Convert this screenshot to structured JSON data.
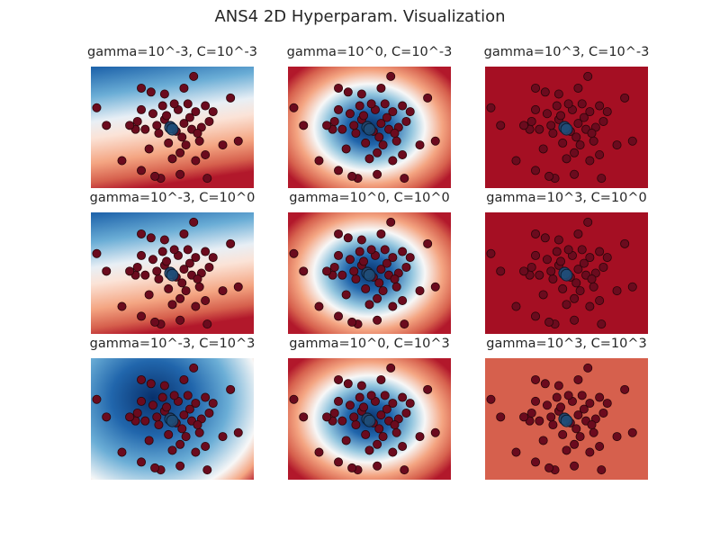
{
  "chart_data": {
    "type": "heatmap",
    "title": "ANS4 2D Hyperparam. Visualization",
    "colormap": "RdBu",
    "colors": {
      "point_fill": "#6b0b1e",
      "point_edge": "#2a0509",
      "support_fill": "#1f4e79",
      "text": "#262626"
    },
    "points": [
      [
        -0.05,
        0.05
      ],
      [
        0.1,
        -0.1
      ],
      [
        -0.2,
        0.2
      ],
      [
        0.3,
        0.1
      ],
      [
        0.25,
        -0.25
      ],
      [
        -0.35,
        -0.15
      ],
      [
        0.45,
        0.25
      ],
      [
        0.5,
        -0.05
      ],
      [
        -0.5,
        0.35
      ],
      [
        0.15,
        0.45
      ],
      [
        -0.1,
        -0.4
      ],
      [
        0.35,
        -0.45
      ],
      [
        0.6,
        0.4
      ],
      [
        -0.7,
        -0.05
      ],
      [
        0.75,
        0.0
      ],
      [
        -0.25,
        0.55
      ],
      [
        0.05,
        0.6
      ],
      [
        0.4,
        0.6
      ],
      [
        0.7,
        -0.35
      ],
      [
        -0.6,
        -0.55
      ],
      [
        0.2,
        -0.65
      ],
      [
        -0.95,
        -0.05
      ],
      [
        -0.9,
        0.15
      ],
      [
        -1.1,
        0.05
      ],
      [
        -0.8,
        0.45
      ],
      [
        -0.55,
        0.9
      ],
      [
        -0.8,
        1.0
      ],
      [
        0.55,
        1.3
      ],
      [
        1.5,
        0.75
      ],
      [
        1.3,
        -0.45
      ],
      [
        1.7,
        -0.35
      ],
      [
        0.85,
        -0.7
      ],
      [
        -1.3,
        -0.85
      ],
      [
        -0.8,
        -1.1
      ],
      [
        -0.3,
        -1.3
      ],
      [
        -0.45,
        -1.25
      ],
      [
        0.0,
        -0.8
      ],
      [
        0.6,
        -0.85
      ],
      [
        0.9,
        -1.3
      ],
      [
        -1.95,
        0.5
      ],
      [
        -1.7,
        0.05
      ],
      [
        0.95,
        0.15
      ],
      [
        1.05,
        0.4
      ],
      [
        0.85,
        0.55
      ],
      [
        -0.2,
        0.85
      ],
      [
        0.3,
        1.0
      ],
      [
        0.2,
        -1.2
      ],
      [
        -0.15,
        0.3
      ],
      [
        0.65,
        -0.15
      ],
      [
        -0.4,
        0.05
      ]
    ],
    "support_vectors": [
      [
        -0.05,
        0.0
      ],
      [
        0.0,
        -0.05
      ]
    ],
    "panels": [
      {
        "title": "gamma=10^-3, C=10^-3",
        "gamma_exp": -3,
        "c_exp": -3
      },
      {
        "title": "gamma=10^0, C=10^-3",
        "gamma_exp": 0,
        "c_exp": -3
      },
      {
        "title": "gamma=10^3, C=10^-3",
        "gamma_exp": 3,
        "c_exp": -3
      },
      {
        "title": "gamma=10^-3, C=10^0",
        "gamma_exp": -3,
        "c_exp": 0
      },
      {
        "title": "gamma=10^0, C=10^0",
        "gamma_exp": 0,
        "c_exp": 0
      },
      {
        "title": "gamma=10^3, C=10^0",
        "gamma_exp": 3,
        "c_exp": 0
      },
      {
        "title": "gamma=10^-3, C=10^3",
        "gamma_exp": -3,
        "c_exp": 3
      },
      {
        "title": "gamma=10^0, C=10^3",
        "gamma_exp": 0,
        "c_exp": 3
      },
      {
        "title": "gamma=10^3, C=10^3",
        "gamma_exp": 3,
        "c_exp": 3
      }
    ]
  }
}
